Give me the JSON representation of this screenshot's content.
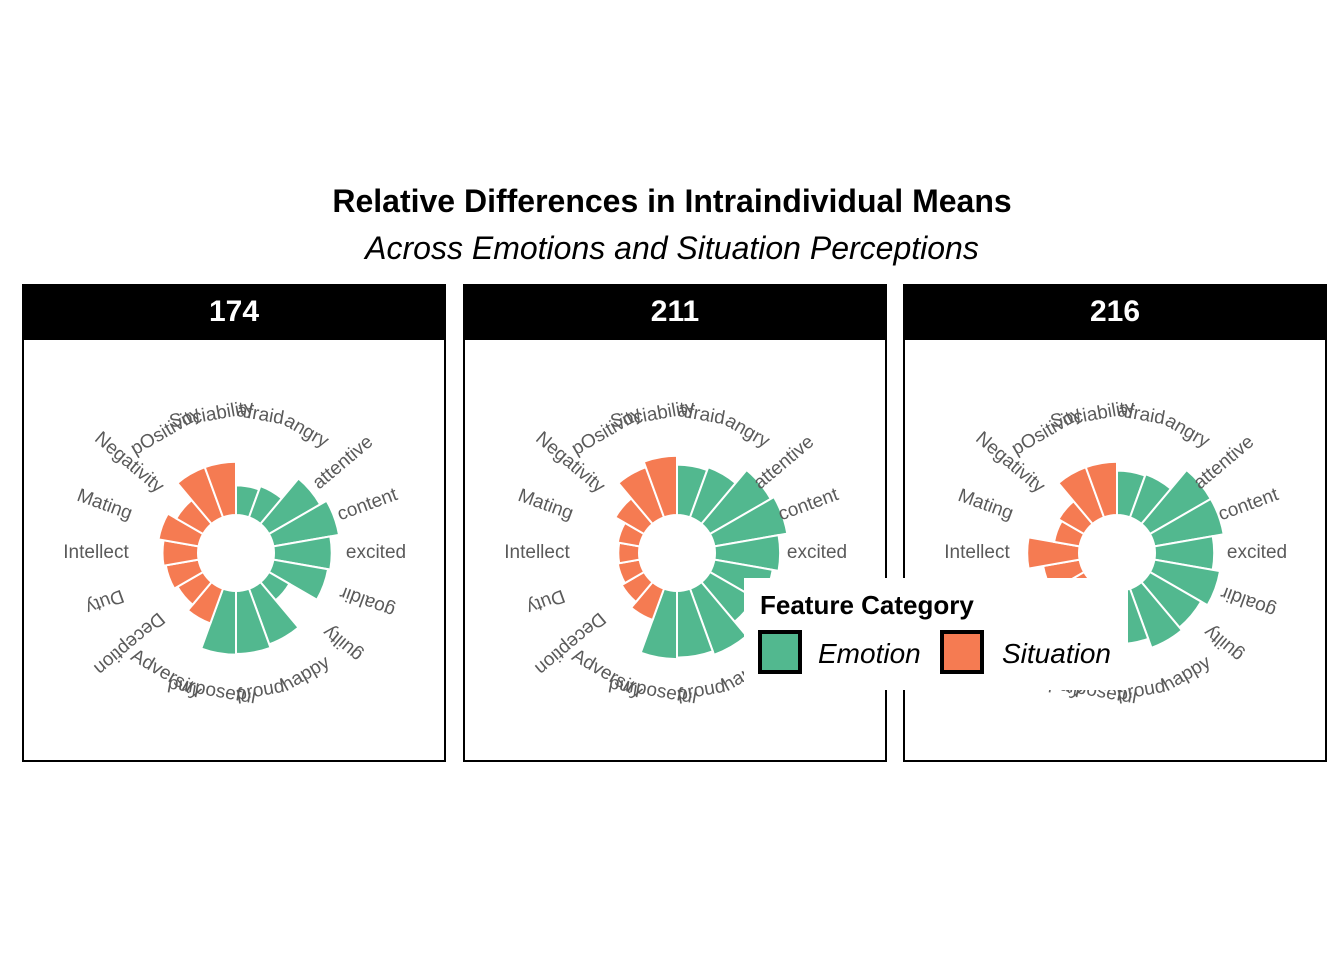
{
  "title": "Relative Differences in Intraindividual Means",
  "subtitle": "Across Emotions and Situation Perceptions",
  "legend": {
    "title": "Feature Category",
    "items": [
      {
        "label": "Emotion",
        "color": "#52b88f"
      },
      {
        "label": "Situation",
        "color": "#f57b52"
      }
    ]
  },
  "chart_data": [
    {
      "type": "bar",
      "polar": true,
      "panel": "174",
      "categories": [
        "afraid",
        "angry",
        "attentive",
        "content",
        "excited",
        "goaldir",
        "guilty",
        "happy",
        "proud",
        "purposeful",
        "Adversity",
        "Deception",
        "Duty",
        "Intellect",
        "Mating",
        "Negativity",
        "pOsitivity",
        "Sociability"
      ],
      "category_type": [
        "Emotion",
        "Emotion",
        "Emotion",
        "Emotion",
        "Emotion",
        "Emotion",
        "Emotion",
        "Emotion",
        "Emotion",
        "Emotion",
        "Situation",
        "Situation",
        "Situation",
        "Situation",
        "Situation",
        "Situation",
        "Situation",
        "Situation"
      ],
      "values": [
        0.4,
        0.45,
        0.8,
        0.9,
        0.78,
        0.75,
        0.32,
        0.8,
        0.85,
        0.86,
        0.5,
        0.4,
        0.45,
        0.48,
        0.55,
        0.42,
        0.72,
        0.72
      ]
    },
    {
      "type": "bar",
      "polar": true,
      "panel": "211",
      "categories": [
        "afraid",
        "angry",
        "attentive",
        "content",
        "excited",
        "goaldir",
        "guilty",
        "happy",
        "proud",
        "purposeful",
        "Adversity",
        "Deception",
        "Duty",
        "Intellect",
        "Mating",
        "Negativity",
        "pOsitivity",
        "Sociability"
      ],
      "category_type": [
        "Emotion",
        "Emotion",
        "Emotion",
        "Emotion",
        "Emotion",
        "Emotion",
        "Emotion",
        "Emotion",
        "Emotion",
        "Emotion",
        "Situation",
        "Situation",
        "Situation",
        "Situation",
        "Situation",
        "Situation",
        "Situation",
        "Situation"
      ],
      "values": [
        0.68,
        0.72,
        0.95,
        1.0,
        0.88,
        0.8,
        0.7,
        0.95,
        0.9,
        0.92,
        0.45,
        0.35,
        0.3,
        0.28,
        0.3,
        0.45,
        0.72,
        0.8
      ]
    },
    {
      "type": "bar",
      "polar": true,
      "panel": "216",
      "categories": [
        "afraid",
        "angry",
        "attentive",
        "content",
        "excited",
        "goaldir",
        "guilty",
        "happy",
        "proud",
        "purposeful",
        "Adversity",
        "Deception",
        "Duty",
        "Intellect",
        "Mating",
        "Negativity",
        "pOsitivity",
        "Sociability"
      ],
      "category_type": [
        "Emotion",
        "Emotion",
        "Emotion",
        "Emotion",
        "Emotion",
        "Emotion",
        "Emotion",
        "Emotion",
        "Emotion",
        "Emotion",
        "Situation",
        "Situation",
        "Situation",
        "Situation",
        "Situation",
        "Situation",
        "Situation",
        "Situation"
      ],
      "values": [
        0.6,
        0.62,
        0.95,
        0.95,
        0.8,
        0.9,
        0.8,
        0.85,
        0.72,
        0.6,
        0.45,
        0.45,
        0.5,
        0.7,
        0.35,
        0.4,
        0.72,
        0.72
      ]
    }
  ]
}
